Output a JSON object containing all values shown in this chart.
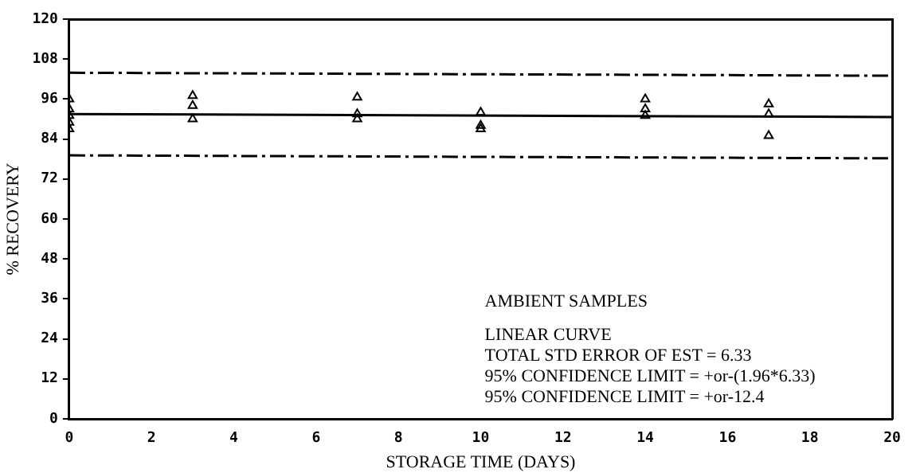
{
  "chart_data": {
    "type": "scatter",
    "xlabel": "STORAGE TIME (DAYS)",
    "ylabel": "% RECOVERY",
    "xlim": [
      0,
      20
    ],
    "xticks": [
      0,
      2,
      4,
      6,
      8,
      10,
      12,
      14,
      16,
      18,
      20
    ],
    "ylim": [
      0,
      120
    ],
    "yticks": [
      0,
      12,
      24,
      36,
      48,
      60,
      72,
      84,
      96,
      108,
      120
    ],
    "grid": false,
    "legend": false,
    "marker": "triangle",
    "series": [
      {
        "color": "#000000",
        "x": [
          0,
          0,
          0,
          0,
          0,
          3,
          3,
          3,
          7,
          7,
          7,
          10,
          10,
          10,
          14,
          14,
          14,
          17,
          17,
          17
        ],
        "values": [
          96,
          93,
          91,
          89,
          87,
          97,
          94,
          90,
          96.5,
          91.5,
          90,
          92,
          88,
          87,
          96,
          93,
          91,
          94.5,
          91.5,
          85
        ]
      },
      {
        "type": "line",
        "color": "#000000",
        "line_style": "solid",
        "marker": "none",
        "x": [
          0,
          20
        ],
        "values": [
          91.5,
          90.6
        ]
      },
      {
        "type": "line",
        "color": "#000000",
        "line_style": "dashed",
        "marker": "none",
        "x": [
          0,
          20
        ],
        "values": [
          103.9,
          103
        ]
      },
      {
        "type": "line",
        "color": "#000000",
        "line_style": "dashed",
        "marker": "none",
        "x": [
          0,
          20
        ],
        "values": [
          79.1,
          78.2
        ]
      }
    ],
    "annotations": [
      "AMBIENT SAMPLES",
      "LINEAR CURVE",
      "TOTAL STD ERROR OF EST = 6.33",
      "95% CONFIDENCE LIMIT = +or-(1.96*6.33)",
      "95% CONFIDENCE LIMIT = +or-12.4"
    ]
  }
}
